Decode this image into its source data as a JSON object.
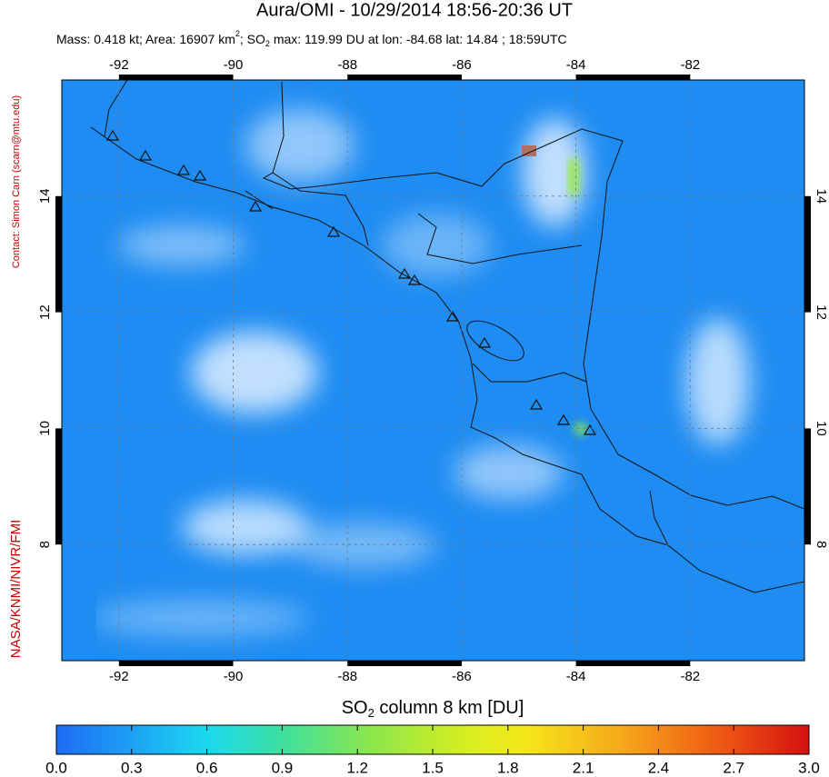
{
  "header": {
    "title": "Aura/OMI - 10/29/2014 18:56-20:36 UT",
    "subtitle": [
      "Mass: 0.418 kt; Area: 16907 km",
      "2",
      "; SO",
      "2",
      " max: 119.99 DU at lon: -84.68 lat: 14.84 ; 18:59UTC"
    ]
  },
  "side": {
    "contact": "Contact: Simon Carn (scarn@mtu.edu)",
    "credit": "NASA/KNMI/NIVR/FMI"
  },
  "map": {
    "lon_range": [
      -93,
      -80
    ],
    "lat_range": [
      6,
      16
    ],
    "lon_ticks": [
      -92,
      -90,
      -88,
      -86,
      -84,
      -82
    ],
    "lat_ticks": [
      8,
      10,
      12,
      14
    ]
  },
  "colorbar": {
    "label": [
      "SO",
      "2",
      " column 8 km [DU]"
    ],
    "range": [
      0,
      3
    ],
    "ticks": [
      {
        "value": 0,
        "label": "0.0"
      },
      {
        "value": 0.3,
        "label": "0.3"
      },
      {
        "value": 0.6,
        "label": "0.6"
      },
      {
        "value": 0.9,
        "label": "0.9"
      },
      {
        "value": 1.2,
        "label": "1.2"
      },
      {
        "value": 1.5,
        "label": "1.5"
      },
      {
        "value": 1.8,
        "label": "1.8"
      },
      {
        "value": 2.1,
        "label": "2.1"
      },
      {
        "value": 2.4,
        "label": "2.4"
      },
      {
        "value": 2.7,
        "label": "2.7"
      },
      {
        "value": 3,
        "label": "3.0"
      }
    ]
  }
}
